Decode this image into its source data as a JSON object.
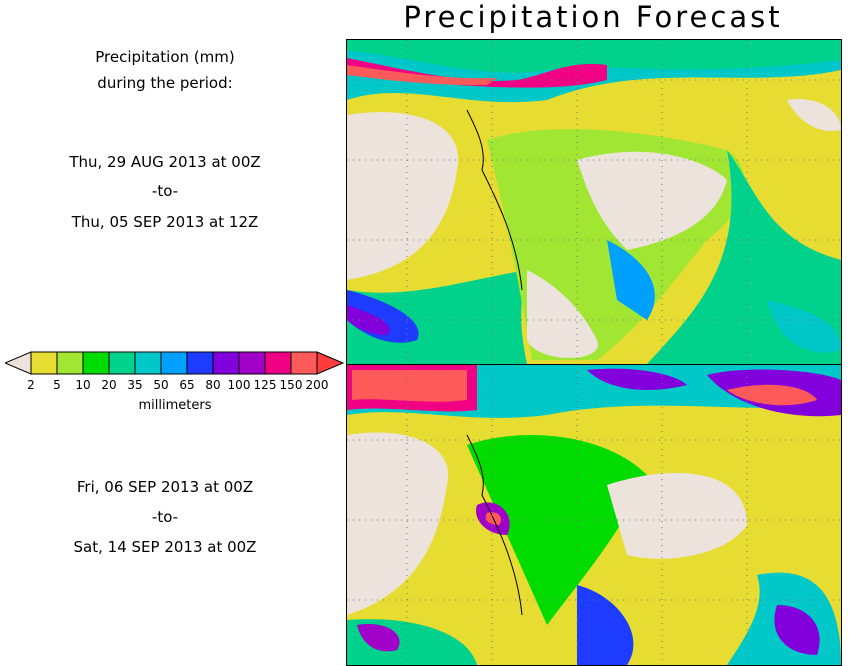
{
  "title": "Precipitation Forecast",
  "description_label": [
    "Precipitation (mm)",
    "during the period:"
  ],
  "periods": [
    {
      "start": "Thu, 29 AUG 2013 at 00Z",
      "sep": "-to-",
      "end": "Thu, 05 SEP 2013 at 12Z"
    },
    {
      "start": "Fri, 06 SEP 2013 at 00Z",
      "sep": "-to-",
      "end": "Sat, 14 SEP 2013 at 00Z"
    }
  ],
  "legend": {
    "unit": "millimeters",
    "ticks": [
      "2",
      "5",
      "10",
      "20",
      "35",
      "50",
      "65",
      "80",
      "100",
      "125",
      "150",
      "200"
    ],
    "below_color": "#ece4dc",
    "colors": [
      "#e6dc32",
      "#a0e632",
      "#00dc00",
      "#00d28c",
      "#00c8c8",
      "#00a0ff",
      "#1e3cff",
      "#8200dc",
      "#a000c8",
      "#f00082",
      "#ff5a5a"
    ],
    "above_color": "#ff3c3c"
  }
}
